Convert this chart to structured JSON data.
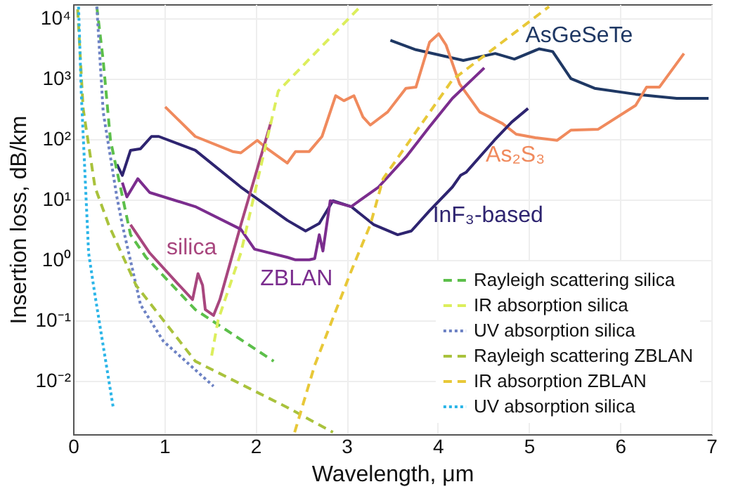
{
  "chart_data": {
    "type": "line",
    "xlabel": "Wavelength, μm",
    "ylabel": "Insertion loss, dB/km",
    "log": "y",
    "grid": true,
    "legend": "bottom right",
    "xlim": [
      0,
      7
    ],
    "xticks": [
      0,
      1,
      2,
      3,
      4,
      5,
      6,
      7
    ],
    "ylim": [
      0.0013,
      17000
    ],
    "yticks": [
      {
        "value": 0.01,
        "label": "10⁻²"
      },
      {
        "value": 0.1,
        "label": "10⁻¹"
      },
      {
        "value": 1,
        "label": "10⁰"
      },
      {
        "value": 10,
        "label": "10¹"
      },
      {
        "value": 100,
        "label": "10²"
      },
      {
        "value": 1000,
        "label": "10³"
      },
      {
        "value": 10000,
        "label": "10⁴"
      }
    ],
    "series": [
      {
        "name": "AsGeSeTe",
        "color": "#1f3864",
        "line_style": "solid",
        "x": [
          3.48,
          3.76,
          4.28,
          4.63,
          4.84,
          5.11,
          5.26,
          5.46,
          5.72,
          6.17,
          6.62,
          6.97
        ],
        "values": [
          4300,
          3000,
          2000,
          2600,
          2100,
          3100,
          2800,
          1000,
          690,
          550,
          470,
          470
        ]
      },
      {
        "name": "As₂S₃",
        "color": "#f08a5d",
        "line_style": "solid",
        "x": [
          1.01,
          1.34,
          1.75,
          1.84,
          2.02,
          2.13,
          2.35,
          2.44,
          2.59,
          2.73,
          2.88,
          2.97,
          3.08,
          3.18,
          3.26,
          3.45,
          3.65,
          3.76,
          3.91,
          4.01,
          4.09,
          4.24,
          4.46,
          4.71,
          4.86,
          5.07,
          5.31,
          5.46,
          5.76,
          6.17,
          6.29,
          6.43,
          6.7
        ],
        "values": [
          340,
          110,
          62,
          59,
          95,
          69,
          40,
          62,
          62,
          110,
          520,
          430,
          520,
          230,
          170,
          280,
          690,
          720,
          4000,
          5500,
          3600,
          810,
          280,
          180,
          120,
          105,
          95,
          140,
          145,
          360,
          720,
          720,
          2600
        ]
      },
      {
        "name": "InF₃-based",
        "color": "#2e2470",
        "line_style": "solid",
        "x": [
          0.48,
          0.54,
          0.63,
          0.74,
          0.86,
          0.94,
          1.34,
          1.84,
          2.35,
          2.55,
          2.7,
          2.85,
          3.05,
          3.3,
          3.56,
          3.71,
          3.91,
          4.16,
          4.25,
          4.31,
          4.62,
          4.81,
          4.99
        ],
        "values": [
          38,
          25,
          65,
          69,
          110,
          110,
          65,
          16,
          4.5,
          3,
          4,
          9.5,
          7.6,
          3.8,
          2.6,
          3,
          6.5,
          16,
          25,
          28,
          95,
          190,
          320
        ]
      },
      {
        "name": "silica",
        "color": "#a8467e",
        "line_style": "solid",
        "x": [
          0.63,
          0.84,
          1.15,
          1.31,
          1.37,
          1.42,
          1.45,
          1.54,
          1.61,
          1.84,
          2.17
        ],
        "values": [
          3.8,
          1.3,
          0.4,
          0.22,
          0.59,
          0.38,
          0.15,
          0.12,
          0.22,
          3.8,
          190
        ]
      },
      {
        "name": "ZBLAN",
        "color": "#7b2d8e",
        "line_style": "solid",
        "x": [
          0.54,
          0.59,
          0.71,
          0.84,
          1.34,
          1.84,
          1.99,
          2.35,
          2.44,
          2.59,
          2.65,
          2.7,
          2.74,
          2.82,
          3.05,
          3.35,
          3.65,
          3.91,
          4.16,
          4.51
        ],
        "values": [
          19,
          11,
          22,
          13,
          7.6,
          3.2,
          1.5,
          1.1,
          1,
          1,
          1.05,
          2.6,
          1.4,
          9.5,
          7.6,
          16,
          50,
          160,
          470,
          1500
        ]
      },
      {
        "name": "Rayleigh scattering silica",
        "color": "#5cbf4a",
        "line_style": "dashed",
        "x": [
          0.26,
          0.33,
          0.41,
          0.63,
          0.8,
          1.34,
          2.2
        ],
        "values": [
          15500,
          2000,
          95,
          2.6,
          1.1,
          0.15,
          0.021
        ]
      },
      {
        "name": "IR absorption silica",
        "color": "#dcee5c",
        "line_style": "dashed",
        "x": [
          1.52,
          1.59,
          1.84,
          2.25,
          2.7,
          3.15
        ],
        "values": [
          0.026,
          0.1,
          1.3,
          620,
          3100,
          15500
        ]
      },
      {
        "name": "UV absorption silica",
        "color": "#6d82c4",
        "line_style": "dotted",
        "x": [
          0.26,
          0.33,
          0.48,
          0.54,
          0.74,
          0.99,
          1.54
        ],
        "values": [
          15500,
          280,
          11,
          3.8,
          0.18,
          0.045,
          0.0081
        ]
      },
      {
        "name": "Rayleigh scattering ZBLAN",
        "color": "#a9c23c",
        "line_style": "dashed",
        "x": [
          0.05,
          0.11,
          0.24,
          0.39,
          0.69,
          1.34,
          2.35,
          2.85
        ],
        "values": [
          14000,
          320,
          16,
          3.8,
          0.38,
          0.021,
          0.0036,
          0.0014
        ]
      },
      {
        "name": "IR absorption ZBLAN",
        "color": "#e8c838",
        "line_style": "dashed",
        "x": [
          2.43,
          2.65,
          3.05,
          3.26,
          3.4,
          4.16,
          5.22
        ],
        "values": [
          0.0014,
          0.018,
          0.65,
          3.8,
          22,
          950,
          15500
        ]
      },
      {
        "name": "UV absorption silica",
        "color": "#2bb5e8",
        "line_style": "dotted",
        "x": [
          0.06,
          0.09,
          0.17,
          0.24,
          0.44
        ],
        "values": [
          15500,
          550,
          1.3,
          0.26,
          0.0036
        ]
      }
    ]
  }
}
